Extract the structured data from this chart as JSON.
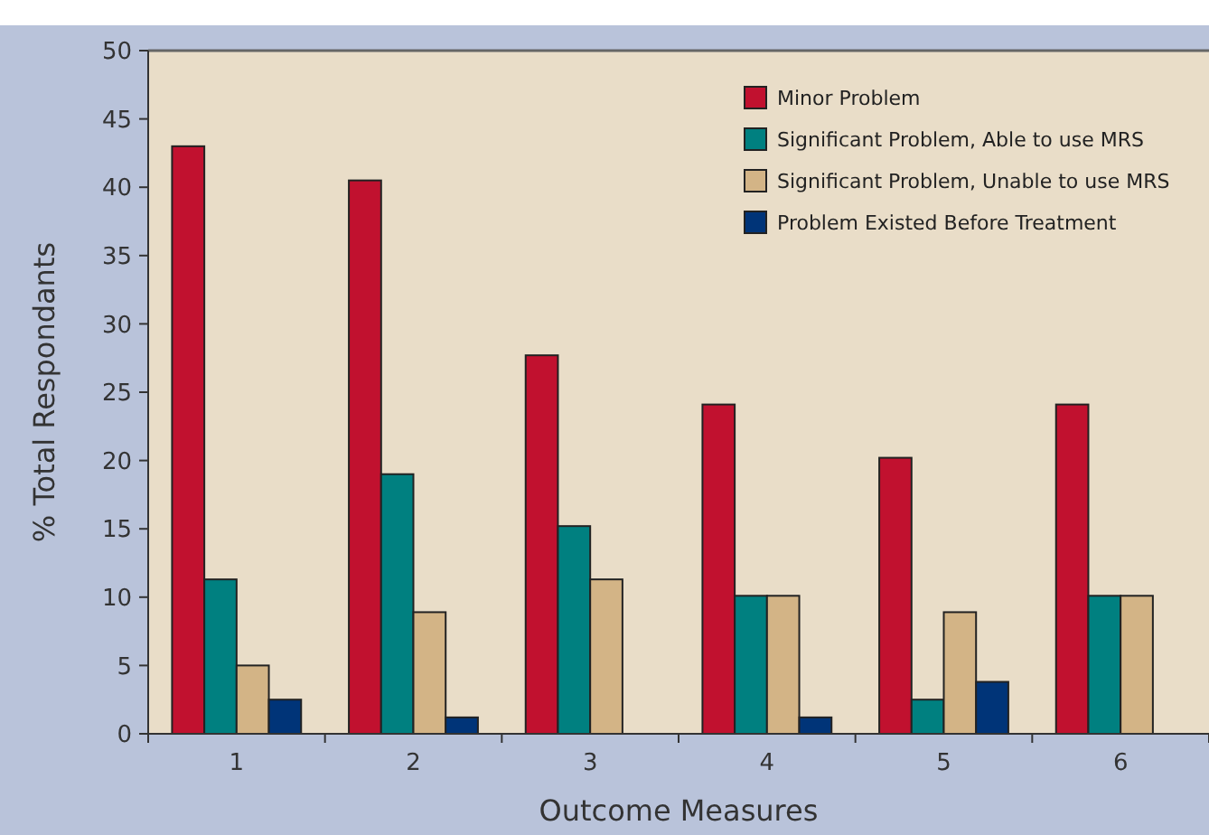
{
  "chart_data": {
    "type": "bar",
    "xlabel": "Outcome Measures",
    "ylabel": "% Total Respondants",
    "categories": [
      "1",
      "2",
      "3",
      "4",
      "5",
      "6"
    ],
    "series": [
      {
        "name": "Minor Problem",
        "color": "#c1112f",
        "values": [
          43.0,
          40.5,
          27.7,
          24.1,
          20.2,
          24.1
        ]
      },
      {
        "name": "Significant Problem, Able to use MRS",
        "color": "#008080",
        "values": [
          11.3,
          19.0,
          15.2,
          10.1,
          2.5,
          10.1
        ]
      },
      {
        "name": "Significant Problem, Unable to use MRS",
        "color": "#d3b486",
        "values": [
          5.0,
          8.9,
          11.3,
          10.1,
          8.9,
          10.1
        ]
      },
      {
        "name": "Problem Existed Before Treatment",
        "color": "#003478",
        "values": [
          2.5,
          1.2,
          null,
          1.2,
          3.8,
          null
        ]
      }
    ],
    "ylim": [
      0,
      50
    ],
    "yticks": [
      0,
      5,
      10,
      15,
      20,
      25,
      30,
      35,
      40,
      45,
      50
    ],
    "grid": false,
    "legend": "top right"
  }
}
